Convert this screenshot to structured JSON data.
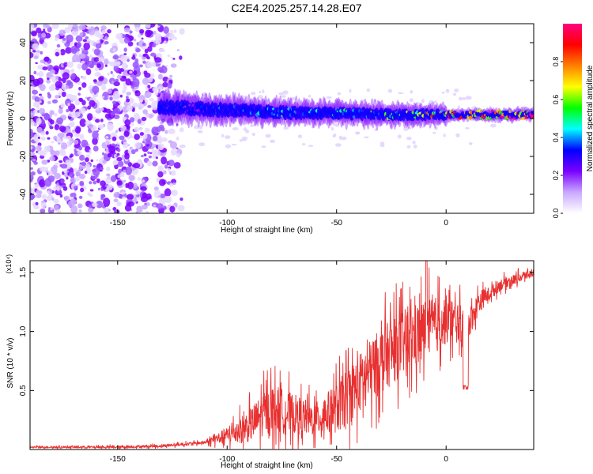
{
  "title": "C2E4.2025.257.14.28.E07",
  "chart_data": [
    {
      "type": "heatmap",
      "description_kind": "spectrogram",
      "xlabel": "Height of straight line (km)",
      "ylabel": "Frequency (Hz)",
      "xlim": [
        -190,
        40
      ],
      "ylim": [
        -50,
        50
      ],
      "xticks": [
        -150,
        -100,
        -50,
        0
      ],
      "yticks": [
        -40,
        -20,
        0,
        20,
        40
      ],
      "colorbar": {
        "label": "Normalized spectral amplitude",
        "range": [
          0,
          1
        ],
        "ticks": [
          0.0,
          0.2,
          0.4,
          0.6,
          0.8
        ],
        "colors": [
          "#ffffff",
          "#c9a8ff",
          "#7a00ff",
          "#0000ff",
          "#00ffff",
          "#00ff00",
          "#ffff00",
          "#ff8000",
          "#ff0000",
          "#ff0080"
        ]
      },
      "signal_band": [
        {
          "x": -130,
          "f_center": 6,
          "amp": 0.3
        },
        {
          "x": -110,
          "f_center": 5,
          "amp": 0.3
        },
        {
          "x": -90,
          "f_center": 4,
          "amp": 0.4
        },
        {
          "x": -70,
          "f_center": 3,
          "amp": 0.4
        },
        {
          "x": -50,
          "f_center": 3,
          "amp": 0.45
        },
        {
          "x": -30,
          "f_center": 2,
          "amp": 0.5
        },
        {
          "x": -10,
          "f_center": 2,
          "amp": 0.7
        },
        {
          "x": 10,
          "f_center": 2,
          "amp": 0.85
        },
        {
          "x": 40,
          "f_center": 2,
          "amp": 0.95
        }
      ]
    },
    {
      "type": "line",
      "xlabel": "Height of straight line (km)",
      "ylabel": "SNR (10 * v/v)",
      "y_multiplier": "(x10⁴)",
      "xlim": [
        -190,
        40
      ],
      "ylim": [
        0,
        1.6
      ],
      "xticks": [
        -150,
        -100,
        -50,
        0
      ],
      "yticks": [
        0.5,
        1.0,
        1.5
      ],
      "ytick_labels": [
        "0.5",
        "1.0",
        "1.5"
      ],
      "color": "#e83030",
      "envelope": [
        {
          "x": -190,
          "y": 0.02
        },
        {
          "x": -150,
          "y": 0.02
        },
        {
          "x": -130,
          "y": 0.03
        },
        {
          "x": -110,
          "y": 0.06
        },
        {
          "x": -100,
          "y": 0.12
        },
        {
          "x": -90,
          "y": 0.2
        },
        {
          "x": -80,
          "y": 0.35
        },
        {
          "x": -70,
          "y": 0.3
        },
        {
          "x": -60,
          "y": 0.25
        },
        {
          "x": -50,
          "y": 0.35
        },
        {
          "x": -40,
          "y": 0.55
        },
        {
          "x": -30,
          "y": 0.75
        },
        {
          "x": -20,
          "y": 0.9
        },
        {
          "x": -10,
          "y": 1.0
        },
        {
          "x": 0,
          "y": 1.1
        },
        {
          "x": 10,
          "y": 1.05
        },
        {
          "x": 15,
          "y": 1.25
        },
        {
          "x": 25,
          "y": 1.4
        },
        {
          "x": 40,
          "y": 1.5
        }
      ],
      "noise": [
        {
          "x": -190,
          "a": 0.01
        },
        {
          "x": -110,
          "a": 0.02
        },
        {
          "x": -100,
          "a": 0.1
        },
        {
          "x": -80,
          "a": 0.3
        },
        {
          "x": -60,
          "a": 0.2
        },
        {
          "x": -45,
          "a": 0.35
        },
        {
          "x": -30,
          "a": 0.4
        },
        {
          "x": -10,
          "a": 0.4
        },
        {
          "x": 5,
          "a": 0.25
        },
        {
          "x": 20,
          "a": 0.08
        },
        {
          "x": 40,
          "a": 0.05
        }
      ],
      "dips": [
        {
          "x": 9,
          "y": 0.5
        }
      ],
      "peaks": [
        {
          "x": -9,
          "y": 1.6
        }
      ]
    }
  ]
}
